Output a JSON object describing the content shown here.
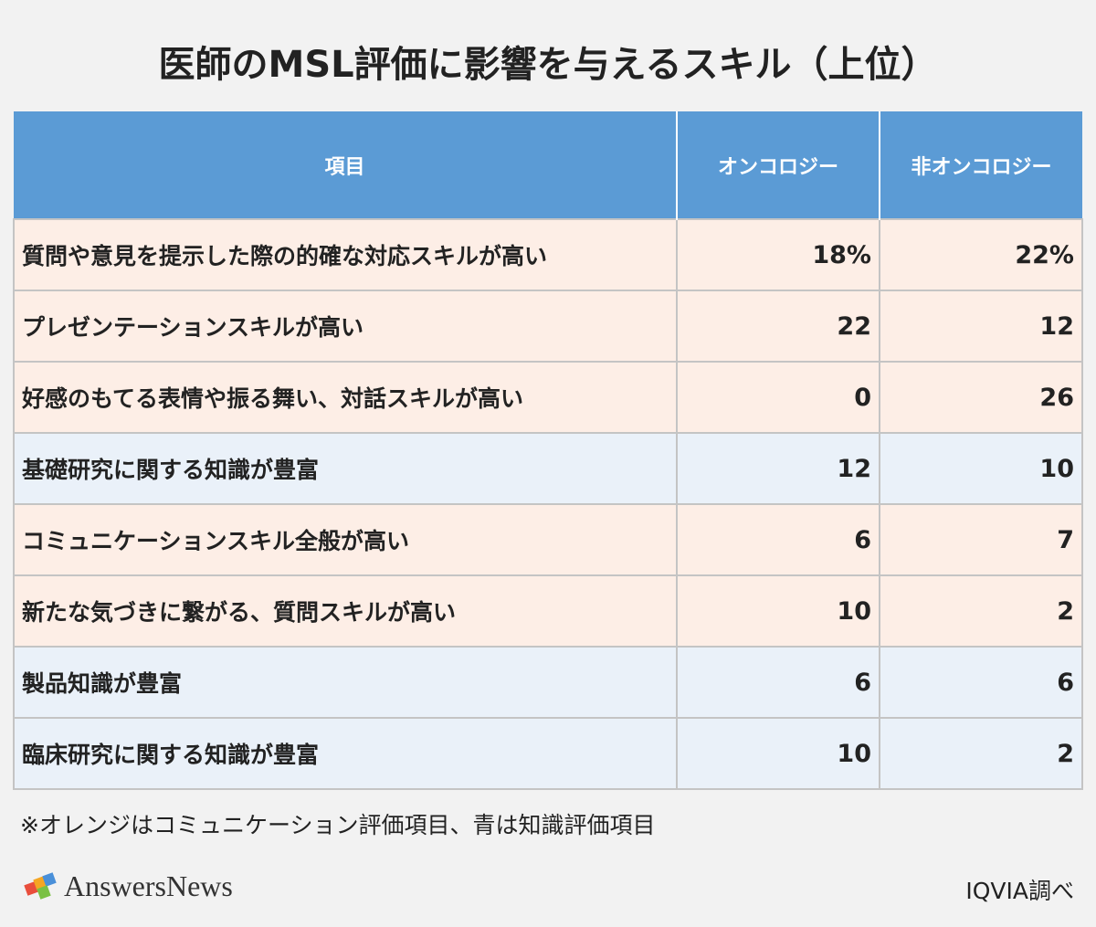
{
  "header": {
    "title": "医師のMSL評価に影響を与えるスキル（上位）"
  },
  "table": {
    "columns": [
      "項目",
      "オンコロジー",
      "非オンコロジー"
    ],
    "header_color": "#5b9bd5",
    "rows": [
      {
        "color": "#fdeee6",
        "cells": [
          "質問や意見を提示した際の的確な対応スキルが高い",
          "18%",
          "22%"
        ]
      },
      {
        "color": "#fdeee6",
        "cells": [
          "プレゼンテーションスキルが高い",
          "22",
          "12"
        ]
      },
      {
        "color": "#fdeee6",
        "cells": [
          "好感のもてる表情や振る舞い、対話スキルが高い",
          "0",
          "26"
        ]
      },
      {
        "color": "#eaf1f9",
        "cells": [
          "基礎研究に関する知識が豊富",
          "12",
          "10"
        ]
      },
      {
        "color": "#fdeee6",
        "cells": [
          "コミュニケーションスキル全般が高い",
          "6",
          "7"
        ]
      },
      {
        "color": "#fdeee6",
        "cells": [
          "新たな気づきに繋がる、質問スキルが高い",
          "10",
          "2"
        ]
      },
      {
        "color": "#eaf1f9",
        "cells": [
          "製品知識が豊富",
          "6",
          "6"
        ]
      },
      {
        "color": "#eaf1f9",
        "cells": [
          "臨床研究に関する知識が豊富",
          "10",
          "2"
        ]
      }
    ]
  },
  "footnote": "※オレンジはコミュニケーション評価項目、青は知識評価項目",
  "footer": {
    "logo": "AnswersNews",
    "source": "IQVIA調べ"
  }
}
